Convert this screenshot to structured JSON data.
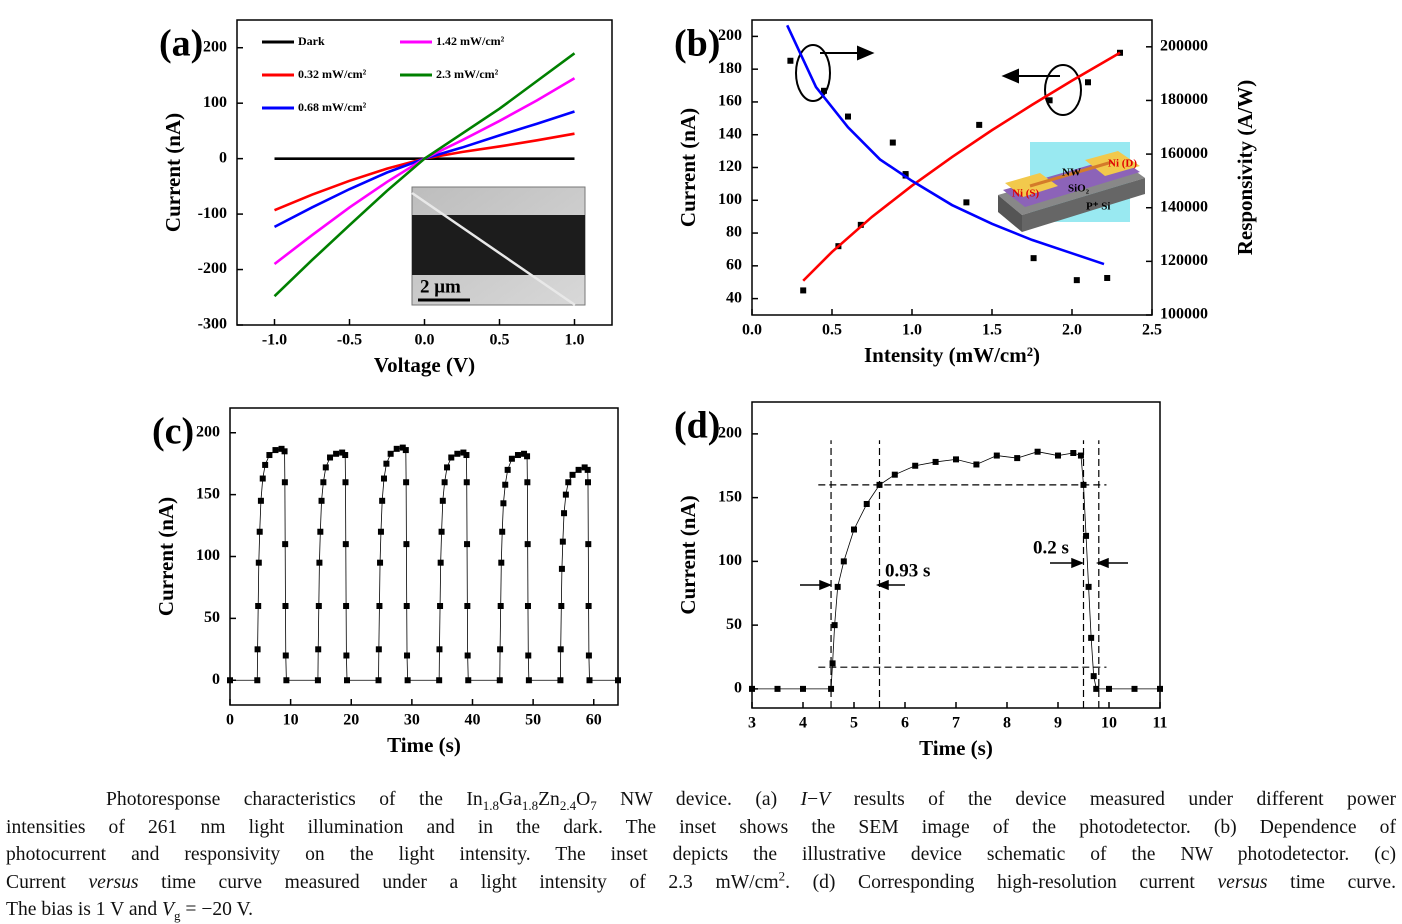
{
  "chart_data": [
    {
      "type": "line",
      "panel_label": "(a)",
      "x_label": "Voltage (V)",
      "y_label": "Current (nA)",
      "xlim": [
        -1.25,
        1.25
      ],
      "ylim": [
        -300,
        250
      ],
      "xticks": [
        {
          "value": -1,
          "label": "-1.0"
        },
        -0.5,
        {
          "value": 0,
          "label": "0.0"
        },
        0.5,
        {
          "value": 1,
          "label": "1.0"
        }
      ],
      "yticks": [
        -300,
        -200,
        -100,
        0,
        100,
        200
      ],
      "x": [
        -1,
        -0.75,
        -0.5,
        -0.25,
        0,
        0.25,
        0.5,
        0.75,
        1
      ],
      "series": [
        {
          "name": "Dark",
          "color": "#000000",
          "values": [
            0,
            0,
            0,
            0,
            0,
            0,
            0,
            0,
            0
          ]
        },
        {
          "name": "0.32 mW/cm²",
          "color": "#ff0000",
          "values": [
            -93,
            -65,
            -40,
            -18,
            0,
            12,
            22,
            33,
            45
          ]
        },
        {
          "name": "0.68 mW/cm²",
          "color": "#0000ff",
          "values": [
            -123,
            -88,
            -55,
            -25,
            0,
            20,
            42,
            63,
            85
          ]
        },
        {
          "name": "1.42 mW/cm²",
          "color": "#ff00ff",
          "values": [
            -190,
            -138,
            -88,
            -42,
            0,
            33,
            68,
            105,
            145
          ]
        },
        {
          "name": "2.3 mW/cm²",
          "color": "#008000",
          "values": [
            -248,
            -183,
            -120,
            -58,
            0,
            45,
            90,
            140,
            190
          ]
        }
      ],
      "legend": "upper-left",
      "inset_label": "2 μm"
    },
    {
      "type": "line",
      "panel_label": "(b)",
      "x_label": "Intensity (mW/cm²)",
      "y_label": "Current (nA)",
      "y2_label": "Responsivity (A/W)",
      "xlim": [
        0,
        2.5
      ],
      "ylim": [
        30,
        210
      ],
      "y2lim": [
        100000,
        210000
      ],
      "xticks": [
        {
          "value": 0,
          "label": "0.0"
        },
        0.5,
        {
          "value": 1,
          "label": "1.0"
        },
        1.5,
        {
          "value": 2,
          "label": "2.0"
        },
        2.5
      ],
      "yticks": [
        40,
        60,
        80,
        100,
        120,
        140,
        160,
        180,
        200
      ],
      "y2ticks": [
        100000,
        120000,
        140000,
        160000,
        180000,
        200000
      ],
      "series": [
        {
          "color": "#000000",
          "mode": "markers",
          "x": [
            0.32,
            0.54,
            0.68,
            0.96,
            1.42,
            1.86,
            2.1,
            2.3
          ],
          "values": [
            45,
            72,
            85,
            116,
            146,
            161,
            172,
            190
          ]
        },
        {
          "color": "#000000",
          "mode": "markers",
          "axis": "y2",
          "x": [
            0.24,
            0.45,
            0.6,
            0.88,
            0.96,
            1.34,
            1.76,
            2.03,
            2.22
          ],
          "values": [
            194800,
            183600,
            174000,
            164300,
            152000,
            142000,
            121200,
            113000,
            113800
          ]
        },
        {
          "color": "#ff0000",
          "mode": "line",
          "x": [
            0.32,
            0.5,
            0.75,
            1,
            1.25,
            1.5,
            1.75,
            2,
            2.3
          ],
          "values": [
            50.9,
            68.5,
            89.9,
            108.9,
            126.4,
            142.8,
            158.2,
            173,
            190
          ]
        },
        {
          "color": "#0000ff",
          "mode": "line",
          "axis": "y2",
          "x": [
            0.22,
            0.4,
            0.6,
            0.8,
            1,
            1.25,
            1.5,
            1.75,
            2,
            2.2
          ],
          "values": [
            208000,
            185000,
            170000,
            158000,
            150000,
            141000,
            134000,
            128000,
            123000,
            119000
          ]
        }
      ],
      "inset_labels": [
        "NW",
        "Ni (D)",
        "Ni (S)",
        "SiO₂",
        "P⁺ Si"
      ]
    },
    {
      "type": "line",
      "panel_label": "(c)",
      "x_label": "Time (s)",
      "y_label": "Current (nA)",
      "xlim": [
        0,
        64
      ],
      "ylim": [
        -20,
        220
      ],
      "xticks": [
        0,
        10,
        20,
        30,
        40,
        50,
        60
      ],
      "yticks": [
        0,
        50,
        100,
        150,
        200
      ],
      "series": [
        {
          "color": "#000000",
          "mode": "line+markers",
          "x": [
            0,
            4.5,
            4.55,
            4.65,
            4.75,
            4.9,
            5.1,
            5.4,
            5.8,
            6.5,
            7.5,
            8.5,
            9,
            9.05,
            9.1,
            9.15,
            9.2,
            9.3,
            14.5,
            14.55,
            14.65,
            14.75,
            14.9,
            15.1,
            15.4,
            15.8,
            16.5,
            17.5,
            18.5,
            19,
            19.05,
            19.1,
            19.15,
            19.2,
            19.3,
            24.5,
            24.55,
            24.65,
            24.75,
            24.9,
            25.1,
            25.4,
            25.8,
            26.5,
            27.5,
            28.5,
            29,
            29.05,
            29.1,
            29.15,
            29.2,
            29.3,
            34.5,
            34.55,
            34.65,
            34.75,
            34.9,
            35.1,
            35.4,
            35.8,
            36.5,
            37.5,
            38.5,
            39,
            39.05,
            39.1,
            39.15,
            39.2,
            39.3,
            44.5,
            44.55,
            44.65,
            44.75,
            44.9,
            45.1,
            45.4,
            45.8,
            46.5,
            47.5,
            48.5,
            49,
            49.05,
            49.1,
            49.15,
            49.2,
            49.3,
            54.5,
            54.55,
            54.65,
            54.75,
            54.9,
            55.1,
            55.4,
            55.8,
            56.5,
            57.5,
            58.5,
            59,
            59.05,
            59.1,
            59.15,
            59.2,
            59.3,
            64
          ],
          "values": [
            0,
            0,
            25,
            60,
            95,
            120,
            145,
            163,
            174,
            182,
            186,
            187,
            185,
            160,
            110,
            60,
            20,
            0,
            0,
            25,
            60,
            95,
            120,
            145,
            160,
            172,
            180,
            183,
            184,
            182,
            160,
            110,
            60,
            20,
            0,
            0,
            25,
            60,
            95,
            120,
            145,
            163,
            175,
            183,
            187,
            188,
            186,
            160,
            110,
            60,
            20,
            0,
            0,
            25,
            60,
            95,
            120,
            145,
            160,
            172,
            180,
            183,
            184,
            182,
            160,
            110,
            60,
            20,
            0,
            0,
            25,
            60,
            95,
            120,
            143,
            158,
            170,
            179,
            182,
            183,
            181,
            160,
            110,
            60,
            20,
            0,
            0,
            25,
            60,
            90,
            112,
            135,
            150,
            160,
            166,
            170,
            172,
            170,
            160,
            110,
            60,
            20,
            0,
            0
          ]
        }
      ]
    },
    {
      "type": "line",
      "panel_label": "(d)",
      "x_label": "Time (s)",
      "y_label": "Current (nA)",
      "xlim": [
        3,
        11
      ],
      "ylim": [
        -15,
        225
      ],
      "xticks": [
        3,
        4,
        5,
        6,
        7,
        8,
        9,
        10,
        11
      ],
      "yticks": [
        0,
        50,
        100,
        150,
        200
      ],
      "series": [
        {
          "color": "#000000",
          "mode": "line+markers",
          "x": [
            3,
            3.5,
            4,
            4.55,
            4.58,
            4.62,
            4.68,
            4.8,
            5,
            5.25,
            5.5,
            5.8,
            6.2,
            6.6,
            7,
            7.4,
            7.8,
            8.2,
            8.6,
            9,
            9.3,
            9.45,
            9.5,
            9.55,
            9.6,
            9.65,
            9.7,
            9.75,
            10,
            10.5,
            11
          ],
          "values": [
            0,
            0,
            0,
            0,
            20,
            50,
            80,
            100,
            125,
            145,
            160,
            168,
            175,
            178,
            180,
            176,
            183,
            181,
            186,
            183,
            185,
            183,
            160,
            120,
            80,
            40,
            10,
            0,
            0,
            0,
            0
          ]
        }
      ],
      "vlines": [
        4.55,
        5.5,
        9.5,
        9.8
      ],
      "hlines": [
        160,
        17
      ],
      "annotations": [
        "0.93 s",
        "0.2 s"
      ]
    }
  ],
  "caption": {
    "lines": [
      [
        "Photoresponse characteristics of the In",
        {
          "text": "1.8",
          "style": "sub"
        },
        "Ga",
        {
          "text": "1.8",
          "style": "sub"
        },
        "Zn",
        {
          "text": "2.4",
          "style": "sub"
        },
        "O",
        {
          "text": "7",
          "style": "sub"
        },
        " NW device. (a) ",
        {
          "text": "I",
          "style": "i"
        },
        "−",
        {
          "text": "V",
          "style": "i"
        },
        " results of the device measured under different power"
      ],
      [
        "intensities of 261 nm light illumination and in the dark. The inset shows the SEM image of the photodetector. (b) Dependence of"
      ],
      [
        "photocurrent and responsivity on the light intensity. The inset depicts the illustrative device schematic of the NW photodetector. (c)"
      ],
      [
        "Current ",
        {
          "text": "versus",
          "style": "i"
        },
        " time curve measured under a light intensity of 2.3 mW/cm",
        {
          "text": "2",
          "style": "sup"
        },
        ". (d) Corresponding high-resolution current ",
        {
          "text": "versus",
          "style": "i"
        },
        " time curve."
      ],
      [
        "The bias is 1 V and ",
        {
          "text": "V",
          "style": "i"
        },
        {
          "text": "g",
          "style": "sub"
        },
        " = −20 V."
      ]
    ]
  }
}
